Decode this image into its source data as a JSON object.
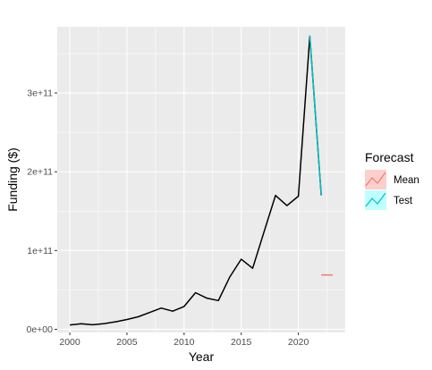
{
  "chart_data": {
    "type": "line",
    "xlabel": "Year",
    "ylabel": "Funding ($)",
    "xlim": [
      1998.9,
      2024.1
    ],
    "ylim": [
      -4000000000,
      384000000000
    ],
    "xticks": [
      2000,
      2005,
      2010,
      2015,
      2020
    ],
    "xtick_labels": [
      "2000",
      "2005",
      "2010",
      "2015",
      "2020"
    ],
    "yticks": [
      0,
      100000000000,
      200000000000,
      300000000000
    ],
    "ytick_labels": [
      "0e+00",
      "1e+11",
      "2e+11",
      "3e+11"
    ],
    "grid": true,
    "series": [
      {
        "name": "",
        "color": "#000000",
        "x": [
          2000,
          2001,
          2002,
          2003,
          2004,
          2005,
          2006,
          2007,
          2008,
          2009,
          2010,
          2011,
          2012,
          2013,
          2014,
          2015,
          2016,
          2017,
          2018,
          2019,
          2020,
          2021,
          2022
        ],
        "y": [
          5500000000,
          7000000000,
          5800000000,
          7200000000,
          9500000000,
          12500000000,
          16000000000,
          21500000000,
          27000000000,
          23000000000,
          29000000000,
          46500000000,
          39500000000,
          36500000000,
          66500000000,
          89000000000,
          77500000000,
          124000000000,
          170000000000,
          157000000000,
          169000000000,
          372000000000,
          170000000000
        ]
      },
      {
        "name": "Test",
        "color": "#00BFC4",
        "x": [
          2021,
          2022
        ],
        "y": [
          373000000000,
          170000000000
        ]
      },
      {
        "name": "Mean",
        "color": "#F8766D",
        "x": [
          2022,
          2023
        ],
        "y": [
          69000000000,
          69000000000
        ]
      }
    ],
    "legend": {
      "title": "Forecast",
      "position": "right",
      "entries": [
        {
          "label": "Mean",
          "color": "#F8766D",
          "fill": "#F8766D"
        },
        {
          "label": "Test",
          "color": "#00BFC4",
          "fill": "#00FFFF"
        }
      ]
    }
  }
}
